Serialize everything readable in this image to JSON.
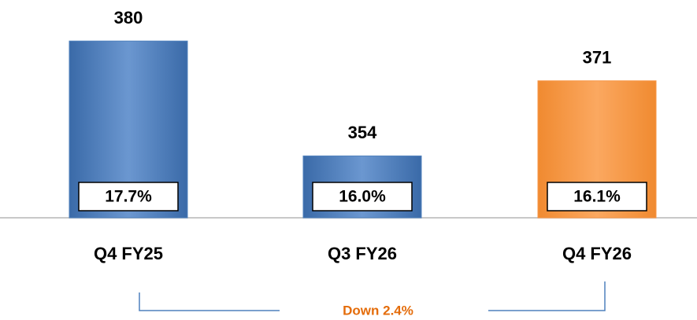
{
  "chart_data": {
    "type": "bar",
    "categories": [
      "Q4 FY25",
      "Q3 FY26",
      "Q4 FY26"
    ],
    "values": [
      380,
      354,
      371
    ],
    "inner_labels": [
      "17.7%",
      "16.0%",
      "16.1%"
    ],
    "colors": [
      "#4f81bd",
      "#4f81bd",
      "#f79646"
    ],
    "ylim": [
      340,
      390
    ],
    "annotation": "Down 2.4%"
  }
}
